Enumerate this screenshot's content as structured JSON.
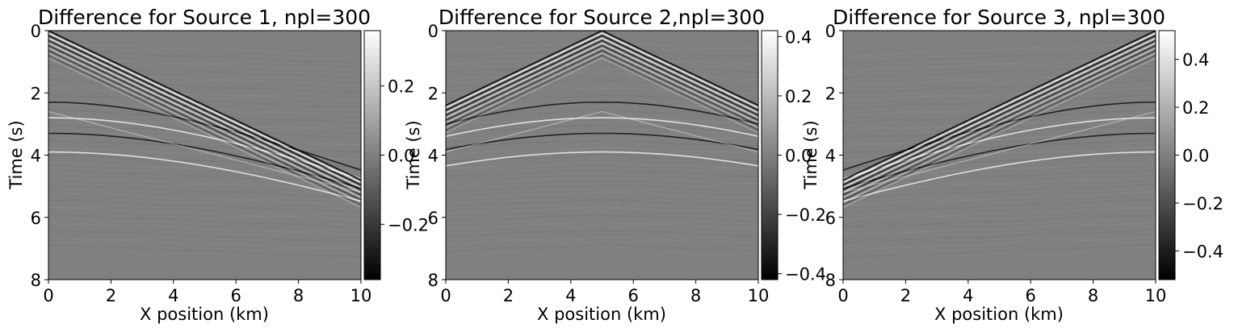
{
  "chart_data": [
    {
      "type": "heatmap",
      "title": "Difference for Source 1, npl=300",
      "xlabel": "X position (km)",
      "ylabel": "Time (s)",
      "xlim": [
        0,
        10
      ],
      "ylim": [
        8,
        0
      ],
      "xticks": [
        "0",
        "2",
        "4",
        "6",
        "8",
        "10"
      ],
      "yticks": [
        "0",
        "2",
        "4",
        "6",
        "8"
      ],
      "colormap": "gray",
      "colorbar": {
        "ticks": [
          "0.2",
          "0.0",
          "−0.2"
        ],
        "tick_values": [
          0.2,
          0.0,
          -0.2
        ],
        "range": [
          -0.36,
          0.36
        ]
      },
      "source_x_km": 0
    },
    {
      "type": "heatmap",
      "title": "Difference for Source 2,npl=300",
      "xlabel": "X position (km)",
      "ylabel": "Time (s)",
      "xlim": [
        0,
        10
      ],
      "ylim": [
        8,
        0
      ],
      "xticks": [
        "0",
        "2",
        "4",
        "6",
        "8",
        "10"
      ],
      "yticks": [
        "0",
        "2",
        "4",
        "6",
        "8"
      ],
      "colormap": "gray",
      "colorbar": {
        "ticks": [
          "0.4",
          "0.2",
          "0.0",
          "−0.2",
          "−0.4"
        ],
        "tick_values": [
          0.4,
          0.2,
          0.0,
          -0.2,
          -0.4
        ],
        "range": [
          -0.42,
          0.42
        ]
      },
      "source_x_km": 5
    },
    {
      "type": "heatmap",
      "title": "Difference for Source 3, npl=300",
      "xlabel": "X position (km)",
      "ylabel": "Time (s)",
      "xlim": [
        0,
        10
      ],
      "ylim": [
        8,
        0
      ],
      "xticks": [
        "0",
        "2",
        "4",
        "6",
        "8",
        "10"
      ],
      "yticks": [
        "0",
        "2",
        "4",
        "6",
        "8"
      ],
      "colormap": "gray",
      "colorbar": {
        "ticks": [
          "0.4",
          "0.2",
          "0.0",
          "−0.2",
          "−0.4"
        ],
        "tick_values": [
          0.4,
          0.2,
          0.0,
          -0.2,
          -0.4
        ],
        "range": [
          -0.52,
          0.52
        ]
      },
      "source_x_km": 10
    }
  ],
  "colors": {
    "background_gray": "#808080",
    "axis": "#000000"
  }
}
